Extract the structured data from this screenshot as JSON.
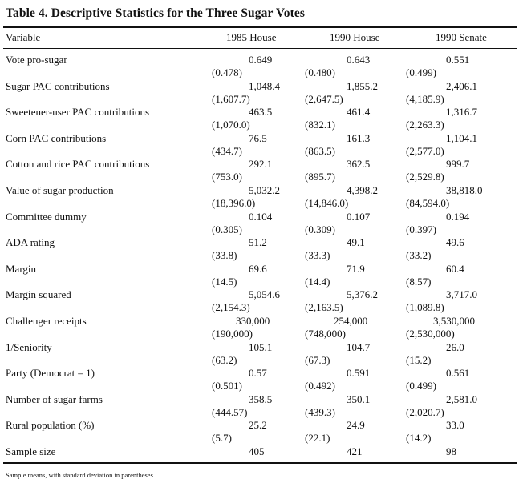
{
  "title": "Table 4.  Descriptive Statistics for the Three Sugar Votes",
  "header": {
    "variable": "Variable",
    "columns": [
      "1985 House",
      "1990 House",
      "1990 Senate"
    ]
  },
  "rows": [
    {
      "label": "Vote pro-sugar",
      "values": [
        {
          "mean": "0.649",
          "sd": "(0.478)"
        },
        {
          "mean": "0.643",
          "sd": "(0.480)"
        },
        {
          "mean": "0.551",
          "sd": "(0.499)"
        }
      ]
    },
    {
      "label": "Sugar PAC contributions",
      "values": [
        {
          "mean": "1,048.4",
          "sd": "(1,607.7)"
        },
        {
          "mean": "1,855.2",
          "sd": "(2,647.5)"
        },
        {
          "mean": "2,406.1",
          "sd": "(4,185.9)"
        }
      ]
    },
    {
      "label": "Sweetener-user PAC contributions",
      "values": [
        {
          "mean": "463.5",
          "sd": "(1,070.0)"
        },
        {
          "mean": "461.4",
          "sd": "(832.1)"
        },
        {
          "mean": "1,316.7",
          "sd": "(2,263.3)"
        }
      ]
    },
    {
      "label": "Corn PAC contributions",
      "values": [
        {
          "mean": "76.5",
          "sd": "(434.7)"
        },
        {
          "mean": "161.3",
          "sd": "(863.5)"
        },
        {
          "mean": "1,104.1",
          "sd": "(2,577.0)"
        }
      ]
    },
    {
      "label": "Cotton and rice PAC contributions",
      "values": [
        {
          "mean": "292.1",
          "sd": "(753.0)"
        },
        {
          "mean": "362.5",
          "sd": "(895.7)"
        },
        {
          "mean": "999.7",
          "sd": "(2,529.8)"
        }
      ]
    },
    {
      "label": "Value of sugar production",
      "values": [
        {
          "mean": "5,032.2",
          "sd": "(18,396.0)"
        },
        {
          "mean": "4,398.2",
          "sd": "(14,846.0)"
        },
        {
          "mean": "38,818.0",
          "sd": "(84,594.0)"
        }
      ]
    },
    {
      "label": "Committee dummy",
      "values": [
        {
          "mean": "0.104",
          "sd": "(0.305)"
        },
        {
          "mean": "0.107",
          "sd": "(0.309)"
        },
        {
          "mean": "0.194",
          "sd": "(0.397)"
        }
      ]
    },
    {
      "label": "ADA rating",
      "values": [
        {
          "mean": "51.2",
          "sd": "(33.8)"
        },
        {
          "mean": "49.1",
          "sd": "(33.3)"
        },
        {
          "mean": "49.6",
          "sd": "(33.2)"
        }
      ]
    },
    {
      "label": "Margin",
      "values": [
        {
          "mean": "69.6",
          "sd": "(14.5)"
        },
        {
          "mean": "71.9",
          "sd": "(14.4)"
        },
        {
          "mean": "60.4",
          "sd": "(8.57)"
        }
      ]
    },
    {
      "label": "Margin squared",
      "values": [
        {
          "mean": "5,054.6",
          "sd": "(2,154.3)"
        },
        {
          "mean": "5,376.2",
          "sd": "(2,163.5)"
        },
        {
          "mean": "3,717.0",
          "sd": "(1,089.8)"
        }
      ]
    },
    {
      "label": "Challenger receipts",
      "values": [
        {
          "mean": "330,000",
          "sd": "(190,000)"
        },
        {
          "mean": "254,000",
          "sd": "(748,000)"
        },
        {
          "mean": "3,530,000",
          "sd": "(2,530,000)"
        }
      ]
    },
    {
      "label": "1/Seniority",
      "values": [
        {
          "mean": "105.1",
          "sd": "(63.2)"
        },
        {
          "mean": "104.7",
          "sd": "(67.3)"
        },
        {
          "mean": "26.0",
          "sd": "(15.2)"
        }
      ]
    },
    {
      "label": "Party (Democrat = 1)",
      "values": [
        {
          "mean": "0.57",
          "sd": "(0.501)"
        },
        {
          "mean": "0.591",
          "sd": "(0.492)"
        },
        {
          "mean": "0.561",
          "sd": "(0.499)"
        }
      ]
    },
    {
      "label": "Number of sugar farms",
      "values": [
        {
          "mean": "358.5",
          "sd": "(444.57)"
        },
        {
          "mean": "350.1",
          "sd": "(439.3)"
        },
        {
          "mean": "2,581.0",
          "sd": "(2,020.7)"
        }
      ]
    },
    {
      "label": "Rural population (%)",
      "values": [
        {
          "mean": "25.2",
          "sd": "(5.7)"
        },
        {
          "mean": "24.9",
          "sd": "(22.1)"
        },
        {
          "mean": "33.0",
          "sd": "(14.2)"
        }
      ]
    },
    {
      "label": "Sample size",
      "values": [
        {
          "mean": "405",
          "sd": ""
        },
        {
          "mean": "421",
          "sd": ""
        },
        {
          "mean": "98",
          "sd": ""
        }
      ]
    }
  ],
  "footnote": "Sample means, with standard deviation in parentheses."
}
